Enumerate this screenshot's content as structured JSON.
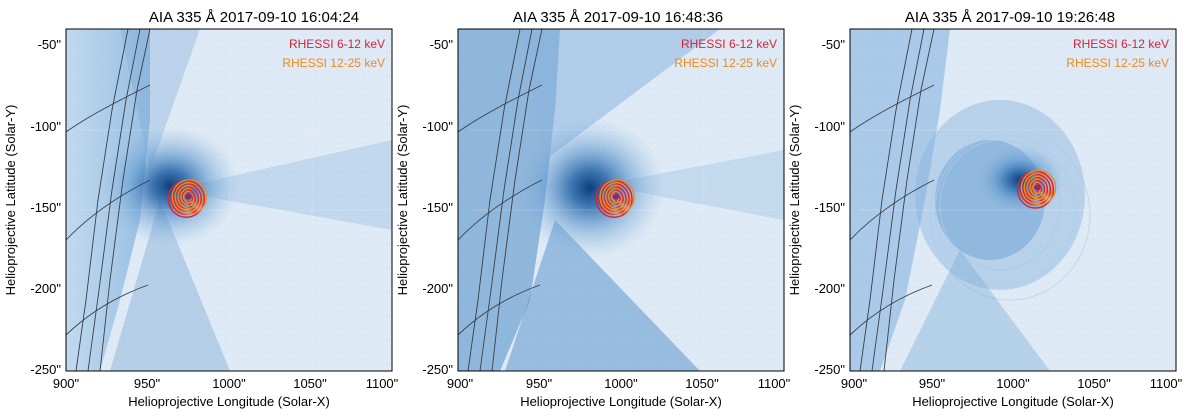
{
  "figure": {
    "panels": [
      {
        "title": "AIA 335 Å 2017-09-10 16:04:24",
        "xlabel": "Helioprojective Longitude (Solar-X)",
        "ylabel": "Helioprojective Latitude (Solar-Y)",
        "legend": [
          {
            "label": "RHESSI 6-12 keV",
            "color": "#d8233c"
          },
          {
            "label": "RHESSI 12-25 keV",
            "color": "#f08a1c"
          }
        ],
        "source": {
          "x": 975,
          "y": -138
        }
      },
      {
        "title": "AIA 335 Å 2017-09-10 16:48:36",
        "xlabel": "Helioprojective Longitude (Solar-X)",
        "ylabel": "Helioprojective Latitude (Solar-Y)",
        "legend": [
          {
            "label": "RHESSI 6-12 keV",
            "color": "#d8233c"
          },
          {
            "label": "RHESSI 12-25 keV",
            "color": "#f08a1c"
          }
        ],
        "source": {
          "x": 997,
          "y": -138
        }
      },
      {
        "title": "AIA 335 Å 2017-09-10 19:26:48",
        "xlabel": "Helioprojective Longitude (Solar-X)",
        "ylabel": "Helioprojective Latitude (Solar-Y)",
        "legend": [
          {
            "label": "RHESSI 6-12 keV",
            "color": "#d8233c"
          },
          {
            "label": "RHESSI 12-25 keV",
            "color": "#f08a1c"
          }
        ],
        "source": {
          "x": 1015,
          "y": -132
        }
      }
    ],
    "x_ticks": [
      "900\"",
      "950\"",
      "1000\"",
      "1050\"",
      "1100\""
    ],
    "y_ticks": [
      "-50\"",
      "-100\"",
      "-150\"",
      "-200\"",
      "-250\""
    ],
    "x_range": [
      900,
      1100
    ],
    "y_range": [
      -250,
      -30
    ],
    "colors": {
      "background": "#e9f2fa",
      "disk": "#9fc4e4",
      "bright": "#2f6fb0",
      "core": "#17508f",
      "grid_lines": "#3a3f46"
    }
  }
}
